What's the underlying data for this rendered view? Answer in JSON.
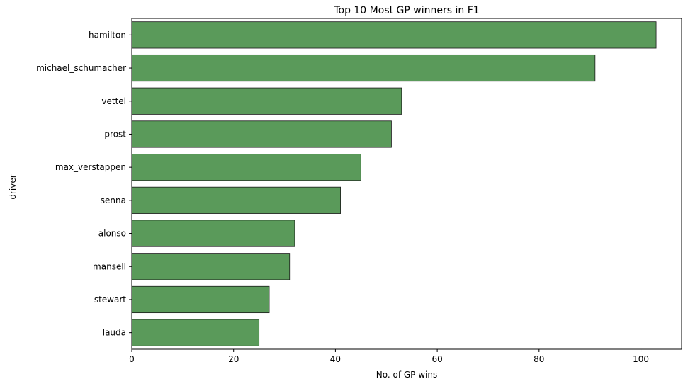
{
  "chart_data": {
    "type": "bar",
    "orientation": "horizontal",
    "title": "Top 10 Most GP winners in F1",
    "xlabel": "No. of GP wins",
    "ylabel": "driver",
    "categories": [
      "hamilton",
      "michael_schumacher",
      "vettel",
      "prost",
      "max_verstappen",
      "senna",
      "alonso",
      "mansell",
      "stewart",
      "lauda"
    ],
    "values": [
      103,
      91,
      53,
      51,
      45,
      41,
      32,
      31,
      27,
      25
    ],
    "xlim": [
      0,
      108
    ],
    "xticks": [
      0,
      20,
      40,
      60,
      80,
      100
    ],
    "grid": false,
    "legend": "none",
    "colors": {
      "bar_fill": "#5a9a5a",
      "bar_edge": "#1a1a1a",
      "axis": "#000000"
    }
  }
}
